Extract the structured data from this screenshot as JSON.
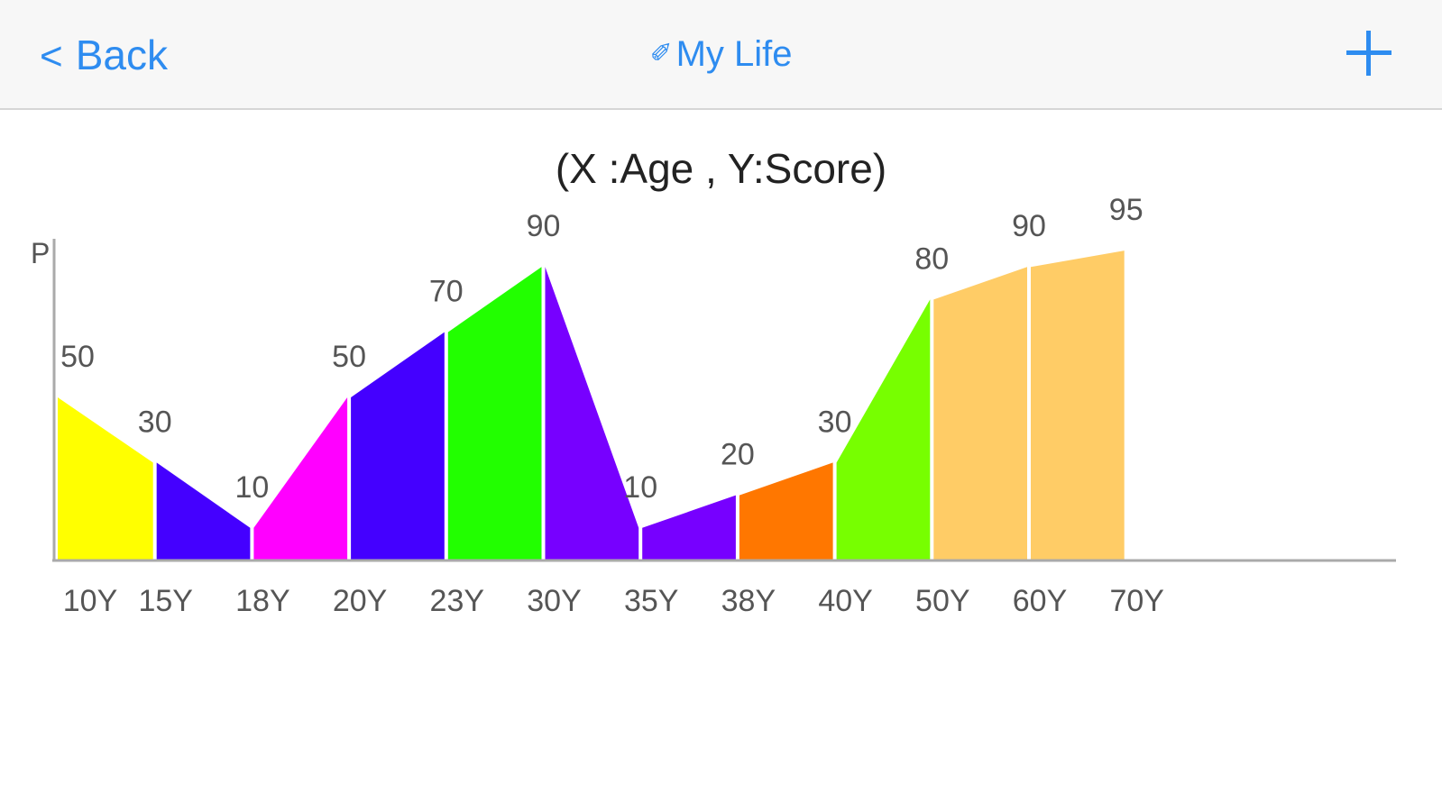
{
  "navbar": {
    "back_label": "Back",
    "title": "My Life",
    "back_icon": "chevron-left-icon",
    "title_icon": "pencil-icon",
    "add_icon": "plus-icon",
    "accent_color": "#2e8cf0"
  },
  "chart_title": "(X :Age , Y:Score)",
  "chart_data": {
    "type": "area",
    "title": "(X :Age , Y:Score)",
    "ylabel": "P",
    "xlabel": "",
    "ylim": [
      0,
      100
    ],
    "grid": false,
    "categories": [
      "10Y",
      "15Y",
      "18Y",
      "20Y",
      "23Y",
      "30Y",
      "35Y",
      "38Y",
      "40Y",
      "50Y",
      "60Y",
      "70Y"
    ],
    "values": [
      50,
      30,
      10,
      50,
      70,
      90,
      10,
      20,
      30,
      80,
      90,
      95
    ],
    "colors": [
      "#ffff00",
      "#4400ff",
      "#ff00ff",
      "#4400ff",
      "#22ff00",
      "#7700ff",
      "#7700ff",
      "#ff7700",
      "#77ff00",
      "#ffcc66",
      "#ffcc66"
    ]
  }
}
